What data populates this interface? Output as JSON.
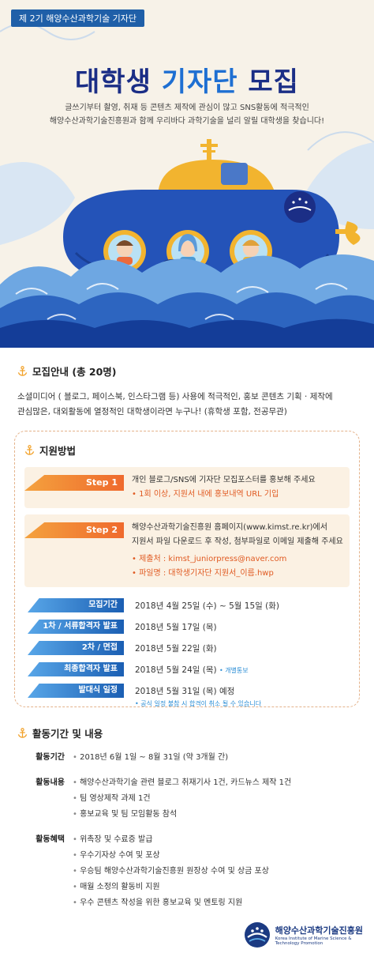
{
  "hero": {
    "badge": "제 2기 해양수산과학기술 기자단",
    "title_a": "대학생",
    "title_b": "기자단",
    "title_c": "모집",
    "intro_1": "글쓰기부터 촬영, 취재 등 콘텐츠 제작에 관심이 많고 SNS활동에 적극적인",
    "intro_2": "해양수산과학기술진흥원과 함께 우리바다 과학기술을 널리 알릴 대학생을 찾습니다!",
    "colors": {
      "navy": "#1b2e86",
      "accent": "#1e6fd2",
      "orange": "#ef6a2d"
    }
  },
  "recruit": {
    "heading": "모집안내 (총 20명)",
    "line_1": "소셜미디어 ( 블로그, 페이스북, 인스타그램 등) 사용에 적극적인, 홍보 콘텐츠 기획 · 제작에",
    "line_2": "관심많은, 대외활동에 열정적인 대학생이라면 누구나! (휴학생 포함, 전공무관)"
  },
  "apply": {
    "heading": "지원방법",
    "step1": {
      "tag": "Step 1",
      "text": "개인 블로그/SNS에 기자단 모집포스터를 홍보해 주세요",
      "sub": "• 1회 이상, 지원서 내에 홍보내역 URL 기입"
    },
    "step2": {
      "tag": "Step 2",
      "text_1": "해양수산과학기술진흥원 홈페이지(www.kimst.re.kr)에서",
      "text_2": "지원서 파일 다운로드 후 작성, 첨부파일로 이메일 제출해 주세요",
      "sub_1": "• 제출처 : kimst_juniorpress@naver.com",
      "sub_2": "• 파일명 : 대학생기자단 지원서_이름.hwp"
    },
    "schedule": [
      {
        "label": "모집기간",
        "value": "2018년 4월 25일 (수) ~ 5월 15일 (화)",
        "note": ""
      },
      {
        "label": "1차 / 서류합격자 발표",
        "value": "2018년 5월 17일 (목)",
        "note": ""
      },
      {
        "label": "2차 / 면접",
        "value": "2018년 5월 22일 (화)",
        "note": ""
      },
      {
        "label": "최종합격자 발표",
        "value": "2018년 5월 24일 (목)",
        "note": "• 개별통보"
      },
      {
        "label": "발대식 일정",
        "value": "2018년 5월 31일 (목) 예정",
        "note": ""
      }
    ],
    "schedule_note": "• 공식 일정 불참 시 합격이 취소 될 수 있습니다"
  },
  "activity": {
    "heading": "활동기간 및 내용",
    "period_label": "활동기간",
    "period_items": [
      "2018년 6월 1일 ~ 8월 31일 (약 3개월 간)"
    ],
    "content_label": "활동내용",
    "content_items": [
      "해양수산과학기술 관련 블로그 취재기사 1건, 카드뉴스 제작 1건",
      "팀 영상제작 과제 1건",
      "홍보교육 및 팀 모임활동 참석"
    ],
    "benefit_label": "활동혜택",
    "benefit_items": [
      "위촉장 및 수료증 발급",
      "우수기자상 수여 및 포상",
      "우승팀 해양수산과학기술진흥원 원장상 수여 및 상금 포상",
      "매월 소정의 활동비 지원",
      "우수 콘텐츠 작성을 위한 홍보교육 및 멘토링 지원"
    ]
  },
  "logo": {
    "name_ko": "해양수산과학기술진흥원",
    "name_en": "Korea Institute of Marine Science & Technology Promotion"
  }
}
